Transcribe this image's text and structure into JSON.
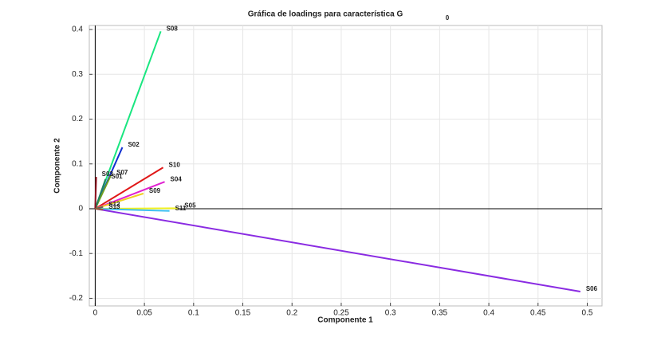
{
  "chart_data": {
    "type": "vector",
    "title": "Gráfica de loadings para característica G",
    "title_subscript": "0",
    "x_label": "Componente 1",
    "y_label": "Componente 2",
    "xlim": [
      -0.006,
      0.515
    ],
    "ylim": [
      -0.217,
      0.409
    ],
    "xticks": [
      0,
      0.05,
      0.1,
      0.15,
      0.2,
      0.25,
      0.3,
      0.35,
      0.4,
      0.45,
      0.5
    ],
    "yticks": [
      -0.2,
      -0.1,
      0,
      0.1,
      0.2,
      0.3,
      0.4
    ],
    "grid": true,
    "series": [
      {
        "name": "S08",
        "color": "#19e680",
        "x": 0.0666,
        "y": 0.396
      },
      {
        "name": "S02",
        "color": "#1030d0",
        "x": 0.0276,
        "y": 0.137
      },
      {
        "name": "S10",
        "color": "#e01818",
        "x": 0.069,
        "y": 0.092
      },
      {
        "name": "S04",
        "color": "#e020d0",
        "x": 0.0706,
        "y": 0.06
      },
      {
        "name": "S09",
        "color": "#f0d020",
        "x": 0.049,
        "y": 0.034
      },
      {
        "name": "S05",
        "color": "#f0f020",
        "x": 0.085,
        "y": 0.001
      },
      {
        "name": "S11",
        "color": "#40c0f0",
        "x": 0.0755,
        "y": -0.005
      },
      {
        "name": "S06",
        "color": "#8a2be2",
        "x": 0.493,
        "y": -0.185
      },
      {
        "name": "S07",
        "color": "#70a020",
        "x": 0.016,
        "y": 0.075
      },
      {
        "name": "S01",
        "color": "#208060",
        "x": 0.0105,
        "y": 0.066
      },
      {
        "name": "S03",
        "color": "#901020",
        "x": 0.001,
        "y": 0.071
      },
      {
        "name": "S12",
        "color": "#606060",
        "x": 0.008,
        "y": 0.004
      },
      {
        "name": "S13",
        "color": "#a06030",
        "x": 0.008,
        "y": -0.002
      }
    ]
  }
}
